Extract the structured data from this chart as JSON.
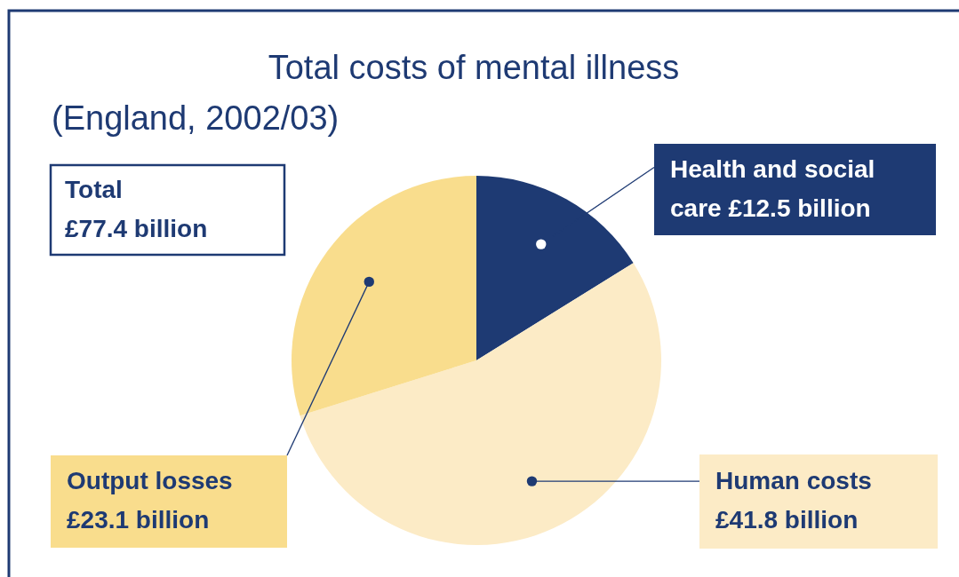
{
  "chart_data": {
    "type": "pie",
    "title": "Total costs of mental illness",
    "subtitle": "(England, 2002/03)",
    "categories": [
      "Health and social care",
      "Human costs",
      "Output losses"
    ],
    "values": [
      12.5,
      41.8,
      23.1
    ],
    "value_labels": [
      "£12.5 billion",
      "£41.8 billion",
      "£23.1 billion"
    ],
    "colors": [
      "#1e3a73",
      "#fcebc6",
      "#f9dd8d"
    ],
    "annotations": [
      "Total\n£77.4 billion"
    ]
  }
}
